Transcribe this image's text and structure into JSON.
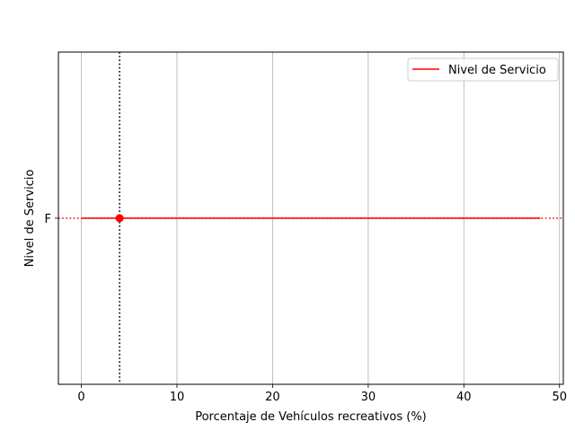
{
  "chart_data": {
    "type": "line",
    "title": "",
    "xlabel": "Porcentaje de Vehículos recreativos (%)",
    "ylabel": "Nivel de Servicio",
    "xlim": [
      -2.4,
      50.4
    ],
    "x_ticks": [
      0,
      10,
      20,
      30,
      40,
      50
    ],
    "y_categories": [
      "F"
    ],
    "grid": "vertical",
    "legend": {
      "placement": "top-right",
      "entries": [
        "Nivel de Servicio"
      ]
    },
    "series": [
      {
        "name": "Nivel de Servicio",
        "color": "#ff0000",
        "points": [
          [
            0,
            "F"
          ],
          [
            48,
            "F"
          ]
        ]
      }
    ],
    "reference_lines": [
      {
        "orientation": "vertical",
        "x": 4,
        "color": "#000000",
        "style": "dotted"
      },
      {
        "orientation": "horizontal",
        "y": "F",
        "color": "#ff0000",
        "style": "dotted"
      }
    ],
    "marker": {
      "x": 4,
      "y": "F",
      "color": "#ff0000"
    }
  }
}
